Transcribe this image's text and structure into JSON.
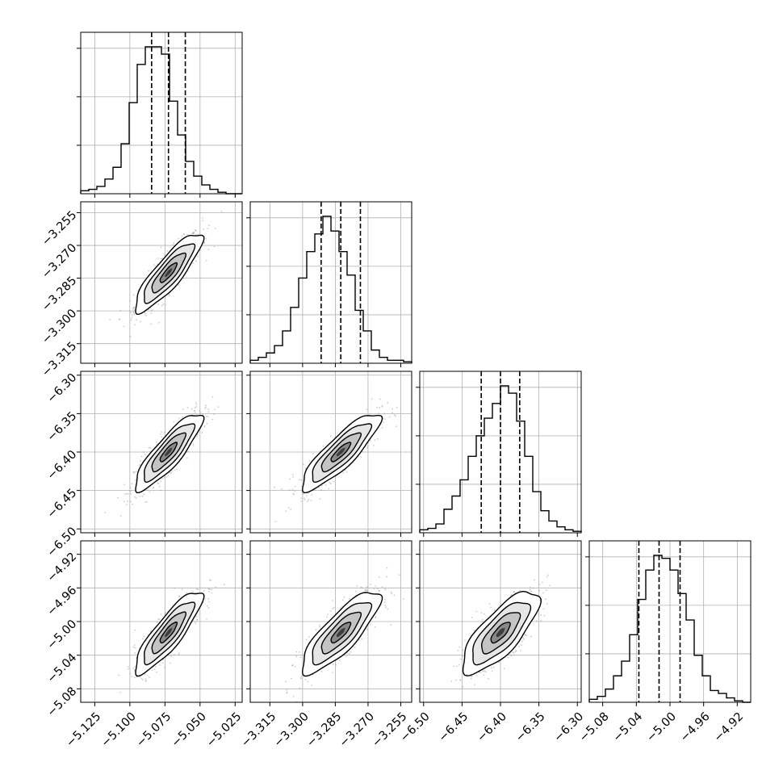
{
  "chart_data": {
    "type": "corner",
    "parameters": [
      {
        "axis_ticks": [
          "−5.125",
          "−5.100",
          "−5.075",
          "−5.050",
          "−5.025"
        ],
        "tick_values": [
          -5.125,
          -5.1,
          -5.075,
          -5.05,
          -5.025
        ],
        "range": [
          -5.135,
          -5.02
        ],
        "quantiles": [
          -5.0845,
          -5.0725,
          -5.0605
        ],
        "histogram": [
          0.02,
          0.03,
          0.05,
          0.1,
          0.18,
          0.34,
          0.62,
          0.88,
          1.0,
          1.0,
          0.95,
          0.63,
          0.4,
          0.22,
          0.12,
          0.06,
          0.03,
          0.01,
          0.0,
          0.0
        ]
      },
      {
        "axis_ticks": [
          "−3.315",
          "−3.300",
          "−3.285",
          "−3.270",
          "−3.255"
        ],
        "tick_values": [
          -3.315,
          -3.3,
          -3.285,
          -3.27,
          -3.255
        ],
        "range": [
          -3.324,
          -3.25
        ],
        "quantiles": [
          -3.2915,
          -3.2825,
          -3.2735
        ],
        "histogram": [
          0.02,
          0.04,
          0.07,
          0.12,
          0.22,
          0.38,
          0.58,
          0.76,
          0.88,
          1.0,
          0.9,
          0.76,
          0.6,
          0.36,
          0.22,
          0.09,
          0.04,
          0.02,
          0.02,
          0.01
        ]
      },
      {
        "axis_ticks": [
          "−6.50",
          "−6.45",
          "−6.40",
          "−6.35",
          "−6.30"
        ],
        "tick_values": [
          -6.5,
          -6.45,
          -6.4,
          -6.35,
          -6.3
        ],
        "range": [
          -6.505,
          -6.295
        ],
        "quantiles": [
          -6.425,
          -6.4,
          -6.375
        ],
        "histogram": [
          0.02,
          0.03,
          0.06,
          0.16,
          0.25,
          0.36,
          0.52,
          0.66,
          0.78,
          0.88,
          1.0,
          0.95,
          0.76,
          0.52,
          0.28,
          0.15,
          0.08,
          0.04,
          0.02,
          0.01
        ]
      },
      {
        "axis_ticks": [
          "−5.08",
          "−5.04",
          "−5.00",
          "−4.96",
          "−4.92"
        ],
        "tick_values": [
          -5.08,
          -5.04,
          -5.0,
          -4.96,
          -4.92
        ],
        "range": [
          -5.096,
          -4.904
        ],
        "quantiles": [
          -5.037,
          -5.013,
          -4.988
        ],
        "histogram": [
          0.02,
          0.04,
          0.09,
          0.18,
          0.28,
          0.46,
          0.7,
          0.9,
          1.0,
          0.98,
          0.9,
          0.74,
          0.56,
          0.32,
          0.18,
          0.08,
          0.06,
          0.03,
          0.01,
          0.0
        ]
      }
    ],
    "correlations": {
      "1-0": 0.86,
      "2-0": 0.86,
      "2-1": 0.86,
      "3-0": 0.86,
      "3-1": 0.82,
      "3-2": 0.76
    },
    "histogram_y_ticks": 4,
    "grid": true,
    "contour_levels": [
      0.5,
      1.0,
      1.5,
      2.0
    ],
    "colors": {
      "line": "#000000",
      "scatter": "#9a9a9a",
      "grid": "#b0b0b0"
    }
  }
}
